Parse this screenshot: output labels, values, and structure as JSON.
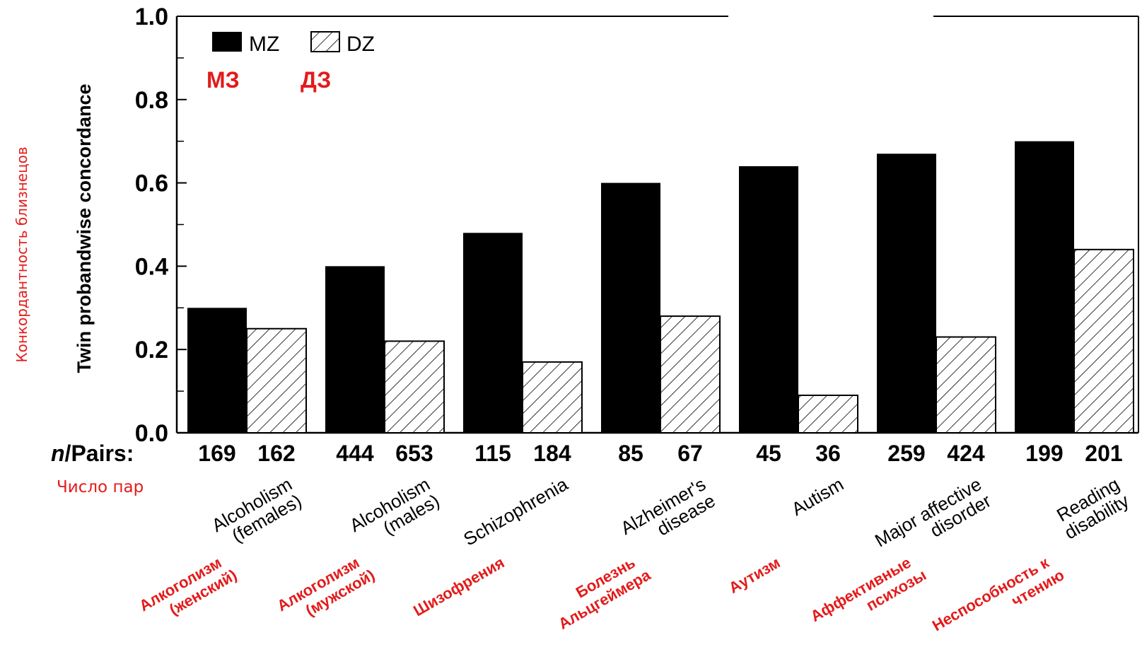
{
  "colors": {
    "mz_fill": "#000000",
    "dz_fill": "#ffffff",
    "hatch": "#000000",
    "russian_text": "#e31b1b"
  },
  "chart_data": {
    "type": "bar",
    "ylabel": "Twin probandwise concordance",
    "ylabel_ru": "Конкордантность близнецов",
    "ylim": [
      0,
      1.0
    ],
    "yticks": [
      "1.0",
      "0.8",
      "0.6",
      "0.4",
      "0.2",
      "0.0"
    ],
    "legend": [
      {
        "label": "MZ",
        "label_ru": "МЗ",
        "pattern": "solid"
      },
      {
        "label": "DZ",
        "label_ru": "ДЗ",
        "pattern": "hatched"
      }
    ],
    "n_pairs_label": "n/Pairs:",
    "n_pairs_label_prefix": "n",
    "n_pairs_label_rest": "/Pairs:",
    "n_pairs_label_ru": "Число пар",
    "categories": [
      {
        "en": [
          "Alcoholism",
          "(females)"
        ],
        "ru": [
          "Алкоголизм",
          "(женский)"
        ]
      },
      {
        "en": [
          "Alcoholism",
          "(males)"
        ],
        "ru": [
          "Алкоголизм",
          "(мужской)"
        ]
      },
      {
        "en": [
          "Schizophrenia"
        ],
        "ru": [
          "Шизофрения"
        ]
      },
      {
        "en": [
          "Alzheimer's",
          "disease"
        ],
        "ru": [
          "Болезнь",
          "Альцгеймера"
        ]
      },
      {
        "en": [
          "Autism"
        ],
        "ru": [
          "Аутизм"
        ]
      },
      {
        "en": [
          "Major affective",
          "disorder"
        ],
        "ru": [
          "Аффективные",
          "психозы"
        ]
      },
      {
        "en": [
          "Reading",
          "disability"
        ],
        "ru": [
          "Неспособность к",
          "чтению"
        ]
      }
    ],
    "series": [
      {
        "name": "MZ",
        "values": [
          0.3,
          0.4,
          0.48,
          0.6,
          0.64,
          0.67,
          0.7
        ],
        "n_pairs": [
          "169",
          "444",
          "115",
          "85",
          "45",
          "259",
          "199"
        ]
      },
      {
        "name": "DZ",
        "values": [
          0.25,
          0.22,
          0.17,
          0.28,
          0.09,
          0.23,
          0.44
        ],
        "n_pairs": [
          "162",
          "653",
          "184",
          "67",
          "36",
          "424",
          "201"
        ]
      }
    ]
  }
}
